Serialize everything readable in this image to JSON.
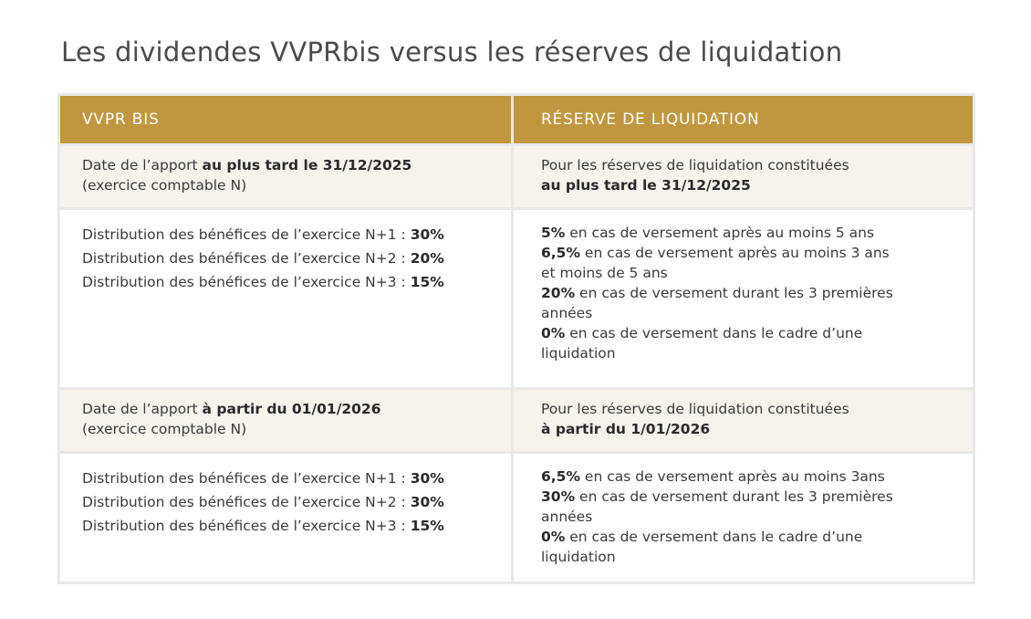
{
  "title": "Les dividendes VVPRbis versus les réserves de liquidation",
  "table": {
    "headers": [
      "VVPR BIS",
      "RÉSERVE DE LIQUIDATION"
    ],
    "rows": [
      {
        "shaded": true,
        "cells": [
          [
            [
              {
                "text": "Date de l’apport ",
                "bold": false
              },
              {
                "text": "au plus tard le 31/12/2025",
                "bold": true
              }
            ],
            [
              {
                "text": "(exercice comptable N)",
                "bold": false
              }
            ]
          ],
          [
            [
              {
                "text": "Pour les réserves de liquidation constituées",
                "bold": false
              }
            ],
            [
              {
                "text": "au plus tard le 31/12/2025",
                "bold": true
              }
            ]
          ]
        ]
      },
      {
        "shaded": false,
        "cells": [
          [
            [
              {
                "text": "Distribution des bénéfices de l’exercice N+1 : ",
                "bold": false
              },
              {
                "text": "30%",
                "bold": true
              }
            ],
            [
              {
                "text": "Distribution des bénéfices de l’exercice N+2 : ",
                "bold": false
              },
              {
                "text": "20%",
                "bold": true
              }
            ],
            [
              {
                "text": "Distribution des bénéfices de l’exercice N+3 : ",
                "bold": false
              },
              {
                "text": "15%",
                "bold": true
              }
            ]
          ],
          [
            [
              {
                "text": "5%",
                "bold": true
              },
              {
                "text": " en cas de versement après au moins 5 ans",
                "bold": false
              }
            ],
            [
              {
                "text": "6,5%",
                "bold": true
              },
              {
                "text": " en cas de versement après au moins 3 ans",
                "bold": false
              }
            ],
            [
              {
                "text": "et moins de 5 ans",
                "bold": false
              }
            ],
            [
              {
                "text": "20%",
                "bold": true
              },
              {
                "text": " en cas de versement durant les 3 premières",
                "bold": false
              }
            ],
            [
              {
                "text": "années",
                "bold": false
              }
            ],
            [
              {
                "text": "0%",
                "bold": true
              },
              {
                "text": " en cas de versement dans le cadre d’une",
                "bold": false
              }
            ],
            [
              {
                "text": "liquidation",
                "bold": false
              }
            ]
          ]
        ]
      },
      {
        "shaded": true,
        "cells": [
          [
            [
              {
                "text": "Date de l’apport ",
                "bold": false
              },
              {
                "text": "à partir du 01/01/2026",
                "bold": true
              }
            ],
            [
              {
                "text": "(exercice comptable N)",
                "bold": false
              }
            ]
          ],
          [
            [
              {
                "text": "Pour les réserves de liquidation constituées",
                "bold": false
              }
            ],
            [
              {
                "text": "à partir du 1/01/2026",
                "bold": true
              }
            ]
          ]
        ]
      },
      {
        "shaded": false,
        "cells": [
          [
            [
              {
                "text": "Distribution des bénéfices de l’exercice N+1 : ",
                "bold": false
              },
              {
                "text": "30%",
                "bold": true
              }
            ],
            [
              {
                "text": "Distribution des bénéfices de l’exercice N+2 : ",
                "bold": false
              },
              {
                "text": "30%",
                "bold": true
              }
            ],
            [
              {
                "text": "Distribution des bénéfices de l’exercice N+3 : ",
                "bold": false
              },
              {
                "text": "15%",
                "bold": true
              }
            ]
          ],
          [
            [
              {
                "text": "6,5%",
                "bold": true
              },
              {
                "text": " en cas de versement après au moins 3ans",
                "bold": false
              }
            ],
            [
              {
                "text": "30%",
                "bold": true
              },
              {
                "text": " en cas de versement durant les 3 premières",
                "bold": false
              }
            ],
            [
              {
                "text": "années",
                "bold": false
              }
            ],
            [
              {
                "text": "0%",
                "bold": true
              },
              {
                "text": " en cas de versement dans le cadre d’une",
                "bold": false
              }
            ],
            [
              {
                "text": "liquidation",
                "bold": false
              }
            ]
          ]
        ]
      }
    ]
  }
}
